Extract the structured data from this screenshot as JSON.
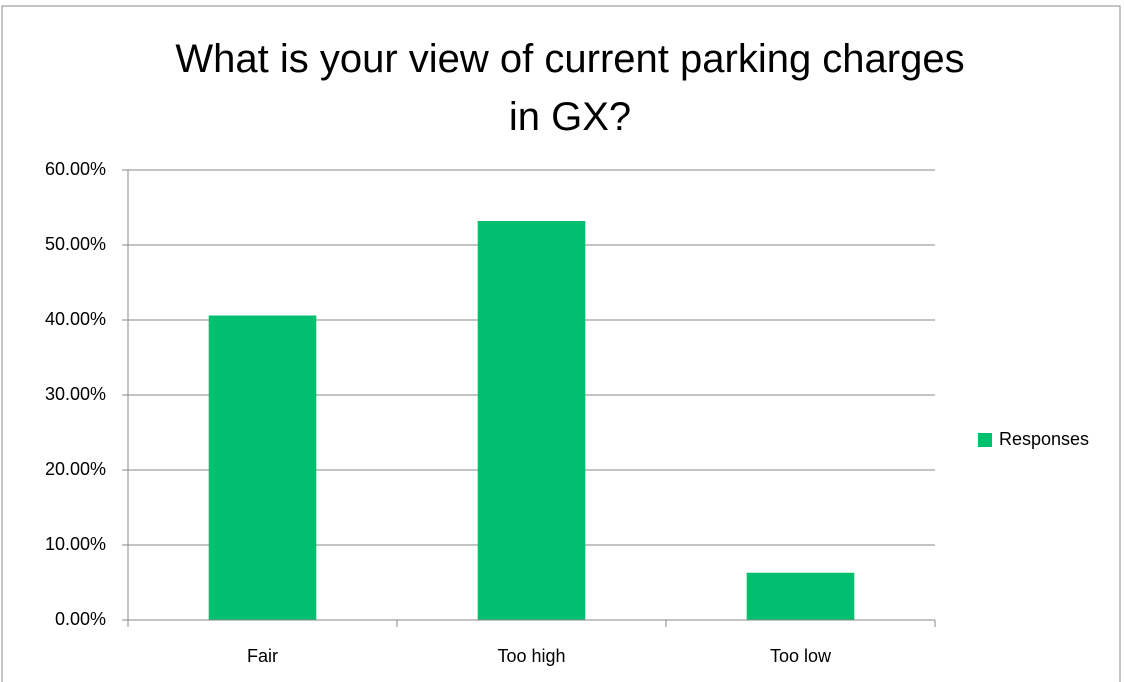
{
  "chart_data": {
    "type": "bar",
    "title": "What is your view of current parking charges in GX?",
    "categories": [
      "Fair",
      "Too high",
      "Too low"
    ],
    "series": [
      {
        "name": "Responses",
        "color": "#00c070",
        "values": [
          40.6,
          53.2,
          6.3
        ]
      }
    ],
    "ylim": [
      0,
      60
    ],
    "yticks": [
      {
        "value": 0,
        "label": "0.00%"
      },
      {
        "value": 10,
        "label": "10.00%"
      },
      {
        "value": 20,
        "label": "20.00%"
      },
      {
        "value": 30,
        "label": "30.00%"
      },
      {
        "value": 40,
        "label": "40.00%"
      },
      {
        "value": 50,
        "label": "50.00%"
      },
      {
        "value": 60,
        "label": "60.00%"
      }
    ],
    "grid": true,
    "legend": "right"
  }
}
